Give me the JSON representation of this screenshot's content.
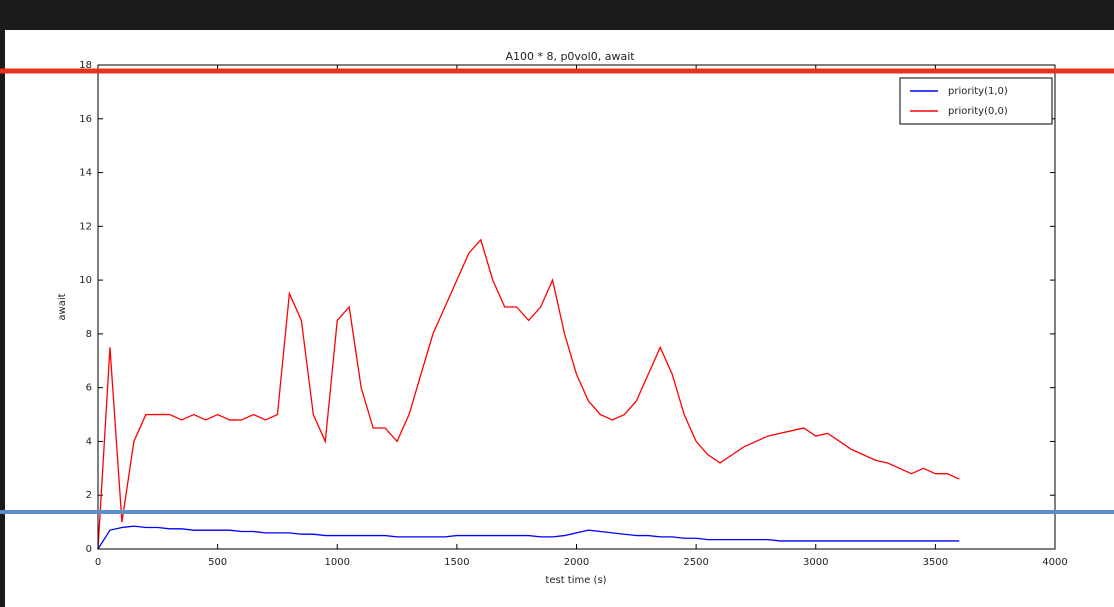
{
  "chart_data": {
    "type": "line",
    "title": "A100 * 8, p0vol0, await",
    "x_label": "test time (s)",
    "y_label": "await",
    "x": [
      0,
      50,
      100,
      150,
      200,
      250,
      300,
      350,
      400,
      450,
      500,
      550,
      600,
      650,
      700,
      750,
      800,
      850,
      900,
      950,
      1000,
      1050,
      1100,
      1150,
      1200,
      1250,
      1300,
      1350,
      1400,
      1450,
      1500,
      1550,
      1600,
      1650,
      1700,
      1750,
      1800,
      1850,
      1900,
      1950,
      2000,
      2050,
      2100,
      2150,
      2200,
      2250,
      2300,
      2350,
      2400,
      2450,
      2500,
      2550,
      2600,
      2650,
      2700,
      2750,
      2800,
      2850,
      2900,
      2950,
      3000,
      3050,
      3100,
      3150,
      3200,
      3250,
      3300,
      3350,
      3400,
      3450,
      3500,
      3550,
      3600
    ],
    "series": [
      {
        "name": "priority(1,0)",
        "color": "#0000ff",
        "values": [
          0,
          0.7,
          0.8,
          0.85,
          0.8,
          0.8,
          0.75,
          0.75,
          0.7,
          0.7,
          0.7,
          0.7,
          0.65,
          0.65,
          0.6,
          0.6,
          0.6,
          0.55,
          0.55,
          0.5,
          0.5,
          0.5,
          0.5,
          0.5,
          0.5,
          0.45,
          0.45,
          0.45,
          0.45,
          0.45,
          0.5,
          0.5,
          0.5,
          0.5,
          0.5,
          0.5,
          0.5,
          0.45,
          0.45,
          0.5,
          0.6,
          0.7,
          0.65,
          0.6,
          0.55,
          0.5,
          0.5,
          0.45,
          0.45,
          0.4,
          0.4,
          0.35,
          0.35,
          0.35,
          0.35,
          0.35,
          0.35,
          0.3,
          0.3,
          0.3,
          0.3,
          0.3,
          0.3,
          0.3,
          0.3,
          0.3,
          0.3,
          0.3,
          0.3,
          0.3,
          0.3,
          0.3,
          0.3
        ]
      },
      {
        "name": "priority(0,0)",
        "color": "#ff0000",
        "values": [
          0,
          7.5,
          1,
          4,
          5,
          5,
          5,
          4.8,
          5,
          4.8,
          5,
          4.8,
          4.8,
          5,
          4.8,
          5,
          9.5,
          8.5,
          5,
          4,
          8.5,
          9,
          6,
          4.5,
          4.5,
          4,
          5,
          6.5,
          8,
          9,
          10,
          11,
          11.5,
          10,
          9,
          9,
          8.5,
          9,
          10,
          8,
          6.5,
          5.5,
          5,
          4.8,
          5,
          5.5,
          6.5,
          7.5,
          6.5,
          5,
          4,
          3.5,
          3.2,
          3.5,
          3.8,
          4,
          4.2,
          4.3,
          4.4,
          4.5,
          4.2,
          4.3,
          4,
          3.7,
          3.5,
          3.3,
          3.2,
          3,
          2.8,
          3,
          2.8,
          2.8,
          2.6
        ]
      }
    ],
    "xlim": [
      0,
      4000
    ],
    "xticks": [
      0,
      500,
      1000,
      1500,
      2000,
      2500,
      3000,
      3500,
      4000
    ],
    "ylim": [
      0,
      18
    ],
    "yticks": [
      0,
      2,
      4,
      6,
      8,
      10,
      12,
      14,
      16,
      18
    ],
    "legend": "upper right"
  }
}
